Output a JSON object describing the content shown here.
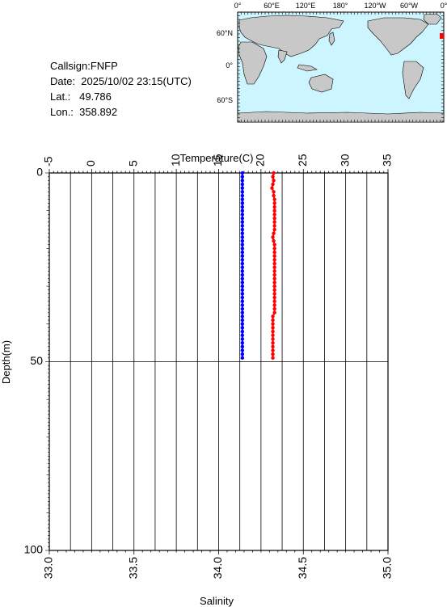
{
  "info": {
    "callsign": "Callsign:FNFP",
    "date": "Date:  2025/10/02 23:15(UTC)",
    "lat": "Lat.:   49.786",
    "lon": "Lon.:  358.892"
  },
  "map": {
    "lon_labels": [
      "0°",
      "60°E",
      "120°E",
      "180°",
      "120°W",
      "60°W",
      "0°"
    ],
    "lat_labels": [
      "60°N",
      "0°",
      "60°S"
    ],
    "ocean_color": "#ccf5ff",
    "land_color": "#c8c8c8",
    "marker_color": "#ff0000",
    "station": {
      "lon": 358.892,
      "lat": 49.786
    }
  },
  "chart_data": {
    "type": "line",
    "top_axis": {
      "label": "Temperature(C)",
      "range": [
        -5,
        35
      ],
      "ticks": [
        -5,
        0,
        5,
        10,
        15,
        20,
        25,
        30,
        35
      ]
    },
    "bottom_axis": {
      "label": "Salinity",
      "range": [
        33.0,
        35.0
      ],
      "ticks": [
        "33.0",
        "33.5",
        "34.0",
        "34.5",
        "35.0"
      ]
    },
    "y_axis": {
      "label": "Depth(m)",
      "range": [
        0,
        100
      ],
      "ticks": [
        0,
        50,
        100
      ],
      "inverted": true
    },
    "grid": true,
    "series": [
      {
        "color": "#ff0000",
        "axis": "temperature",
        "depth": [
          0,
          1,
          2,
          3,
          4,
          5,
          6,
          7,
          8,
          9,
          10,
          11,
          12,
          13,
          14,
          15,
          16,
          17,
          18,
          19,
          20,
          21,
          22,
          23,
          24,
          25,
          26,
          27,
          28,
          29,
          30,
          31,
          32,
          33,
          34,
          35,
          36,
          37,
          38,
          39,
          40,
          41,
          42,
          43,
          44,
          45,
          46,
          47,
          48,
          49
        ],
        "values": [
          21.5,
          21.4,
          21.5,
          21.4,
          21.3,
          21.5,
          21.5,
          21.6,
          21.6,
          21.6,
          21.6,
          21.6,
          21.6,
          21.6,
          21.6,
          21.6,
          21.5,
          21.4,
          21.5,
          21.6,
          21.6,
          21.6,
          21.6,
          21.6,
          21.6,
          21.6,
          21.6,
          21.6,
          21.6,
          21.6,
          21.6,
          21.6,
          21.6,
          21.6,
          21.6,
          21.6,
          21.6,
          21.6,
          21.4,
          21.4,
          21.4,
          21.4,
          21.4,
          21.4,
          21.4,
          21.4,
          21.4,
          21.4,
          21.4,
          21.4
        ]
      },
      {
        "color": "#0000ff",
        "axis": "salinity",
        "depth": [
          0,
          1,
          2,
          3,
          4,
          5,
          6,
          7,
          8,
          9,
          10,
          11,
          12,
          13,
          14,
          15,
          16,
          17,
          18,
          19,
          20,
          21,
          22,
          23,
          24,
          25,
          26,
          27,
          28,
          29,
          30,
          31,
          32,
          33,
          34,
          35,
          36,
          37,
          38,
          39,
          40,
          41,
          42,
          43,
          44,
          45,
          46,
          47,
          48,
          49
        ],
        "values": [
          34.14,
          34.14,
          34.14,
          34.14,
          34.14,
          34.14,
          34.14,
          34.14,
          34.14,
          34.14,
          34.14,
          34.14,
          34.14,
          34.14,
          34.14,
          34.14,
          34.14,
          34.14,
          34.14,
          34.14,
          34.14,
          34.14,
          34.14,
          34.14,
          34.14,
          34.14,
          34.14,
          34.14,
          34.14,
          34.14,
          34.14,
          34.14,
          34.14,
          34.14,
          34.14,
          34.14,
          34.14,
          34.14,
          34.14,
          34.14,
          34.14,
          34.14,
          34.14,
          34.14,
          34.14,
          34.14,
          34.14,
          34.14,
          34.14,
          34.14
        ]
      }
    ]
  }
}
